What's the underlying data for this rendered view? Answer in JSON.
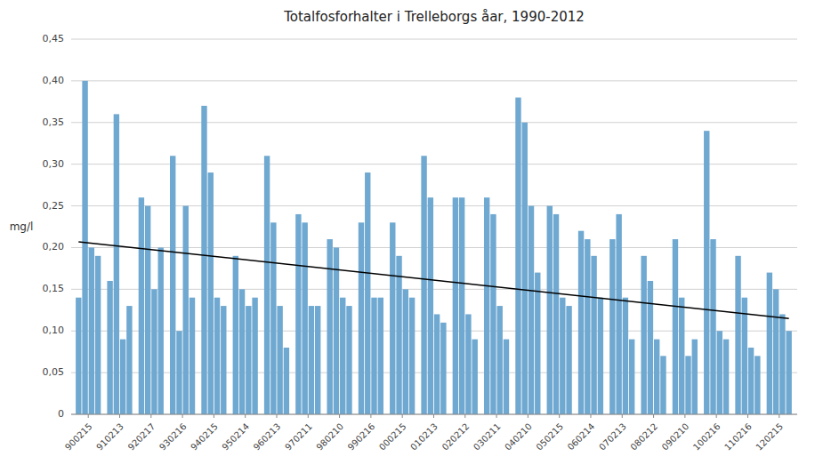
{
  "chart_data": {
    "type": "bar",
    "title": "Totalfosforhalter i Trelleborgs åar, 1990-2012",
    "y_label": "mg/l",
    "color": "#6FA8D0",
    "grid": true,
    "ylim": [
      0,
      0.45
    ],
    "yticks": [
      0,
      {
        "value": 0.05,
        "label": "0,05"
      },
      {
        "value": 0.1,
        "label": "0,10"
      },
      {
        "value": 0.15,
        "label": "0,15"
      },
      {
        "value": 0.2,
        "label": "0,20"
      },
      {
        "value": 0.25,
        "label": "0,25"
      },
      {
        "value": 0.3,
        "label": "0,30"
      },
      {
        "value": 0.35,
        "label": "0,35"
      },
      {
        "value": 0.4,
        "label": "0,40"
      },
      {
        "value": 0.45,
        "label": "0,45"
      }
    ],
    "categories": [
      "900215",
      "910213",
      "920217",
      "930216",
      "940215",
      "950214",
      "960213",
      "970211",
      "980210",
      "990216",
      "000215",
      "010213",
      "020212",
      "030211",
      "040210",
      "050215",
      "060214",
      "070213",
      "080212",
      "090210",
      "100216",
      "110216",
      "120215"
    ],
    "series": [
      {
        "values": [
          0.14,
          0.16,
          0.26,
          0.31,
          0.37,
          0.19,
          0.31,
          0.24,
          0.21,
          0.23,
          0.23,
          0.31,
          0.26,
          0.26,
          0.38,
          0.25,
          0.22,
          0.21,
          0.19,
          0.21,
          0.34,
          0.19,
          0.17
        ]
      },
      {
        "values": [
          0.4,
          0.36,
          0.25,
          0.1,
          0.29,
          0.15,
          0.23,
          0.23,
          0.2,
          0.29,
          0.19,
          0.26,
          0.26,
          0.24,
          0.35,
          0.24,
          0.21,
          0.24,
          0.16,
          0.14,
          0.21,
          0.14,
          0.15
        ]
      },
      {
        "values": [
          0.2,
          0.09,
          0.15,
          0.25,
          0.14,
          0.13,
          0.13,
          0.13,
          0.14,
          0.14,
          0.15,
          0.12,
          0.12,
          0.13,
          0.25,
          0.14,
          0.19,
          0.14,
          0.09,
          0.07,
          0.1,
          0.08,
          0.12
        ]
      },
      {
        "values": [
          0.19,
          0.13,
          0.2,
          0.14,
          0.13,
          0.14,
          0.08,
          0.13,
          0.13,
          0.14,
          0.14,
          0.11,
          0.09,
          0.09,
          0.17,
          0.13,
          0.14,
          0.09,
          0.07,
          0.09,
          0.09,
          0.07,
          0.1
        ]
      }
    ],
    "trend": {
      "values": [
        0.207,
        0.115
      ],
      "color": "#000000"
    }
  }
}
